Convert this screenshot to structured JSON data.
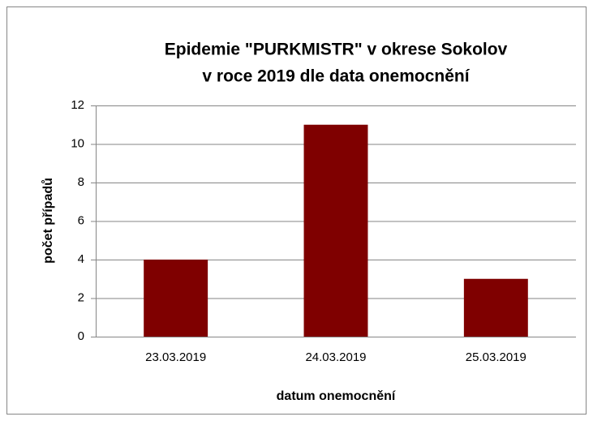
{
  "chart_data": {
    "type": "bar",
    "title": [
      "Epidemie \"PURKMISTR\" v okrese Sokolov",
      "v roce 2019 dle data onemocnění"
    ],
    "x_label": "datum onemocnění",
    "y_label": "počet případů",
    "categories": [
      "23.03.2019",
      "24.03.2019",
      "25.03.2019"
    ],
    "values": [
      4,
      11,
      3
    ],
    "color": "#7f0000",
    "ylim": [
      0,
      12
    ],
    "yticks": [
      0,
      2,
      4,
      6,
      8,
      10,
      12
    ],
    "grid": true
  }
}
